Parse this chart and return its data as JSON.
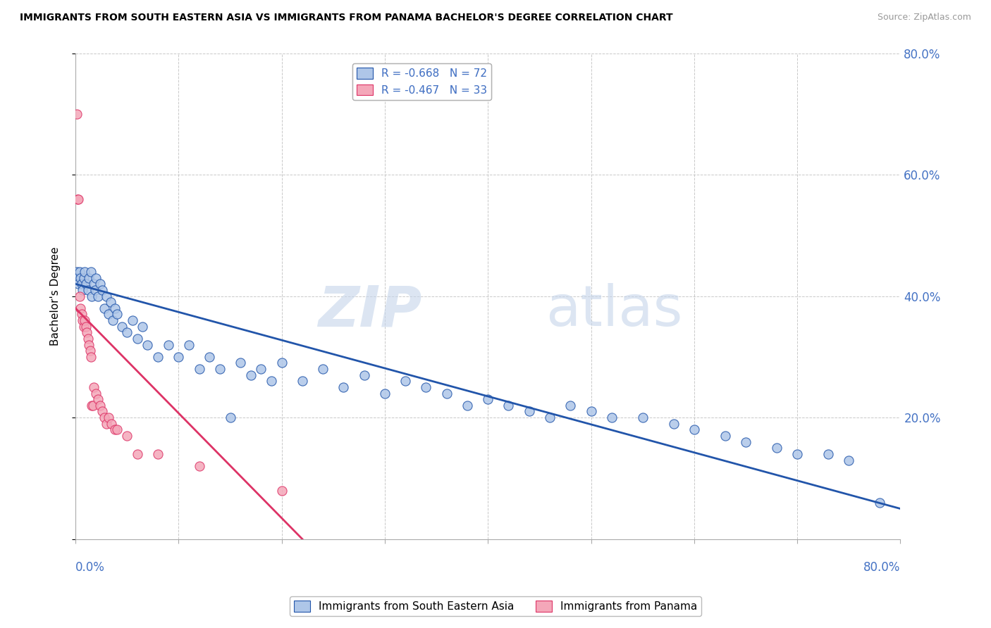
{
  "title": "IMMIGRANTS FROM SOUTH EASTERN ASIA VS IMMIGRANTS FROM PANAMA BACHELOR'S DEGREE CORRELATION CHART",
  "source": "Source: ZipAtlas.com",
  "ylabel": "Bachelor's Degree",
  "series1": {
    "name": "Immigrants from South Eastern Asia",
    "color": "#aec6e8",
    "line_color": "#2255aa",
    "R": -0.668,
    "N": 72,
    "x": [
      0.001,
      0.002,
      0.003,
      0.004,
      0.005,
      0.006,
      0.007,
      0.008,
      0.009,
      0.01,
      0.012,
      0.013,
      0.015,
      0.016,
      0.018,
      0.019,
      0.02,
      0.022,
      0.024,
      0.026,
      0.028,
      0.03,
      0.032,
      0.034,
      0.036,
      0.038,
      0.04,
      0.045,
      0.05,
      0.055,
      0.06,
      0.065,
      0.07,
      0.08,
      0.09,
      0.1,
      0.11,
      0.12,
      0.13,
      0.14,
      0.15,
      0.16,
      0.17,
      0.18,
      0.19,
      0.2,
      0.22,
      0.24,
      0.26,
      0.28,
      0.3,
      0.32,
      0.34,
      0.36,
      0.38,
      0.4,
      0.42,
      0.44,
      0.46,
      0.48,
      0.5,
      0.52,
      0.55,
      0.58,
      0.6,
      0.63,
      0.65,
      0.68,
      0.7,
      0.73,
      0.75,
      0.78
    ],
    "y": [
      0.44,
      0.43,
      0.42,
      0.44,
      0.43,
      0.42,
      0.41,
      0.43,
      0.44,
      0.42,
      0.41,
      0.43,
      0.44,
      0.4,
      0.42,
      0.41,
      0.43,
      0.4,
      0.42,
      0.41,
      0.38,
      0.4,
      0.37,
      0.39,
      0.36,
      0.38,
      0.37,
      0.35,
      0.34,
      0.36,
      0.33,
      0.35,
      0.32,
      0.3,
      0.32,
      0.3,
      0.32,
      0.28,
      0.3,
      0.28,
      0.2,
      0.29,
      0.27,
      0.28,
      0.26,
      0.29,
      0.26,
      0.28,
      0.25,
      0.27,
      0.24,
      0.26,
      0.25,
      0.24,
      0.22,
      0.23,
      0.22,
      0.21,
      0.2,
      0.22,
      0.21,
      0.2,
      0.2,
      0.19,
      0.18,
      0.17,
      0.16,
      0.15,
      0.14,
      0.14,
      0.13,
      0.06
    ],
    "line_x": [
      0.0,
      0.8
    ],
    "line_y": [
      0.42,
      0.05
    ]
  },
  "series2": {
    "name": "Immigrants from Panama",
    "color": "#f4a7b9",
    "line_color": "#dd3366",
    "R": -0.467,
    "N": 33,
    "x": [
      0.001,
      0.002,
      0.003,
      0.004,
      0.005,
      0.006,
      0.007,
      0.008,
      0.009,
      0.01,
      0.011,
      0.012,
      0.013,
      0.014,
      0.015,
      0.016,
      0.017,
      0.018,
      0.02,
      0.022,
      0.024,
      0.026,
      0.028,
      0.03,
      0.032,
      0.035,
      0.038,
      0.04,
      0.05,
      0.06,
      0.08,
      0.12,
      0.2
    ],
    "y": [
      0.7,
      0.56,
      0.56,
      0.4,
      0.38,
      0.37,
      0.36,
      0.35,
      0.36,
      0.35,
      0.34,
      0.33,
      0.32,
      0.31,
      0.3,
      0.22,
      0.22,
      0.25,
      0.24,
      0.23,
      0.22,
      0.21,
      0.2,
      0.19,
      0.2,
      0.19,
      0.18,
      0.18,
      0.17,
      0.14,
      0.14,
      0.12,
      0.08
    ],
    "line_x": [
      0.0,
      0.22
    ],
    "line_y": [
      0.38,
      0.0
    ]
  },
  "xlim": [
    0.0,
    0.8
  ],
  "ylim": [
    0.0,
    0.8
  ],
  "yticks": [
    0.0,
    0.2,
    0.4,
    0.6,
    0.8
  ],
  "ytick_labels": [
    "",
    "20.0%",
    "40.0%",
    "60.0%",
    "80.0%"
  ],
  "background_color": "#ffffff",
  "grid_color": "#cccccc",
  "axis_label_color": "#4472c4"
}
